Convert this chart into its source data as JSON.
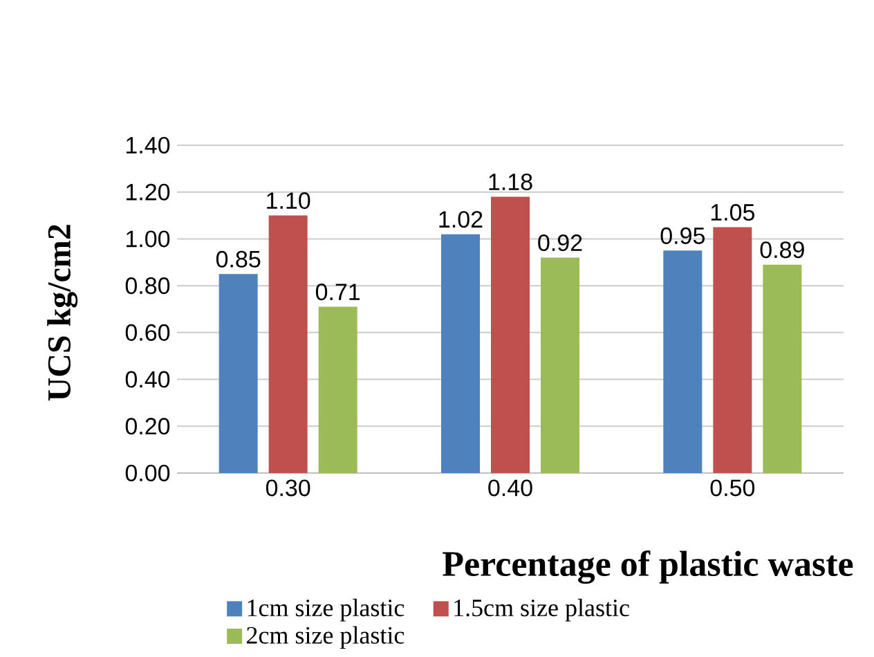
{
  "chart_data": {
    "type": "bar",
    "xlabel": "Percentage of plastic waste",
    "ylabel": "UCS kg/cm2",
    "categories": [
      "0.30",
      "0.40",
      "0.50"
    ],
    "series": [
      {
        "name": "1cm size plastic",
        "color": "#4f81bd",
        "values": [
          0.85,
          1.02,
          0.95
        ],
        "value_labels": [
          "0.85",
          "1.02",
          "0.95"
        ]
      },
      {
        "name": "1.5cm size plastic",
        "color": "#c0504d",
        "values": [
          1.1,
          1.18,
          1.05
        ],
        "value_labels": [
          "1.10",
          "1.18",
          "1.05"
        ]
      },
      {
        "name": "2cm size plastic",
        "color": "#9bbb59",
        "values": [
          0.71,
          0.92,
          0.89
        ],
        "value_labels": [
          "0.71",
          "0.92",
          "0.89"
        ]
      }
    ],
    "ylim": [
      0,
      1.4
    ],
    "yticks": [
      {
        "value": 0,
        "label": "0.00"
      },
      {
        "value": 0.2,
        "label": "0.20"
      },
      {
        "value": 0.4,
        "label": "0.40"
      },
      {
        "value": 0.6,
        "label": "0.60"
      },
      {
        "value": 0.8,
        "label": "0.80"
      },
      {
        "value": 1.0,
        "label": "1.00"
      },
      {
        "value": 1.2,
        "label": "1.20"
      },
      {
        "value": 1.4,
        "label": "1.40"
      }
    ],
    "grid": "y",
    "legend": "bottom"
  }
}
